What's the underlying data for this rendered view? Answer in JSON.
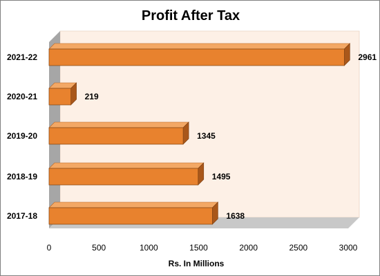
{
  "chart_data": {
    "type": "bar",
    "orientation": "horizontal",
    "three_d": true,
    "title": "Profit After Tax",
    "xlabel": "Rs. In Millions",
    "ylabel": "",
    "categories": [
      "2017-18",
      "2018-19",
      "2019-20",
      "2020-21",
      "2021-22"
    ],
    "values": [
      1638,
      1495,
      1345,
      219,
      2961
    ],
    "data_labels": [
      "1638",
      "1495",
      "1345",
      "219",
      "2961"
    ],
    "xlim": [
      0,
      3000
    ],
    "x_ticks": [
      0,
      500,
      1000,
      1500,
      2000,
      2500,
      3000
    ],
    "x_tick_labels": [
      "0",
      "500",
      "1000",
      "1500",
      "2000",
      "2500",
      "3000"
    ],
    "grid": false,
    "legend": "none",
    "colors": {
      "bar_front": "#e8822e",
      "bar_top": "#f3a865",
      "bar_side": "#a9571a",
      "plot_back_wall": "#fdf0e6",
      "plot_side_wall": "#a6a6a6",
      "plot_floor": "#c8c8c8",
      "frame_border": "#7f7f7f"
    }
  }
}
